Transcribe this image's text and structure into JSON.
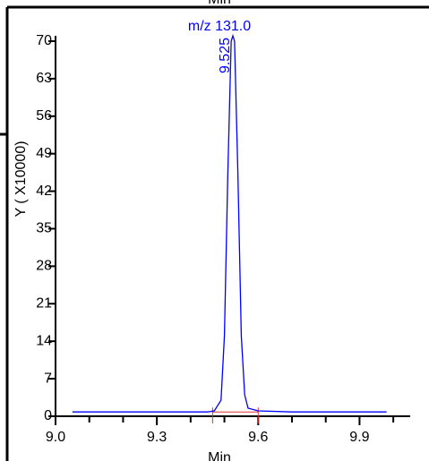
{
  "header_text": "Min",
  "chart_data": {
    "type": "line",
    "title": "m/z  131.0",
    "x_label": "Min",
    "y_label": "Y ( X10000)",
    "xlim": [
      9.0,
      10.05
    ],
    "ylim": [
      0,
      71
    ],
    "xticks": [
      {
        "value": 9,
        "label": "9.0"
      },
      9.3,
      9.6,
      9.9
    ],
    "xminor_ticks": [
      9.1,
      9.2,
      9.4,
      9.5,
      9.7,
      9.8,
      10.0
    ],
    "yticks": [
      0,
      7,
      14,
      21,
      28,
      35,
      42,
      49,
      56,
      63,
      70
    ],
    "series": [
      {
        "name": "m/z 131.0",
        "color": "#0000ff",
        "x": [
          9.05,
          9.3,
          9.45,
          9.47,
          9.49,
          9.5,
          9.51,
          9.52,
          9.525,
          9.53,
          9.54,
          9.55,
          9.56,
          9.57,
          9.6,
          9.7,
          9.98
        ],
        "values": [
          0.8,
          0.8,
          0.8,
          1.0,
          3,
          15,
          45,
          70,
          71,
          70,
          45,
          15,
          4,
          1.5,
          1.0,
          0.8,
          0.8
        ]
      }
    ],
    "annotations": [
      {
        "text": "9.525",
        "x": 9.525,
        "y": 71
      }
    ],
    "baseline": {
      "x": [
        9.465,
        9.6
      ],
      "y": 0.8,
      "color": "#e03030"
    }
  }
}
